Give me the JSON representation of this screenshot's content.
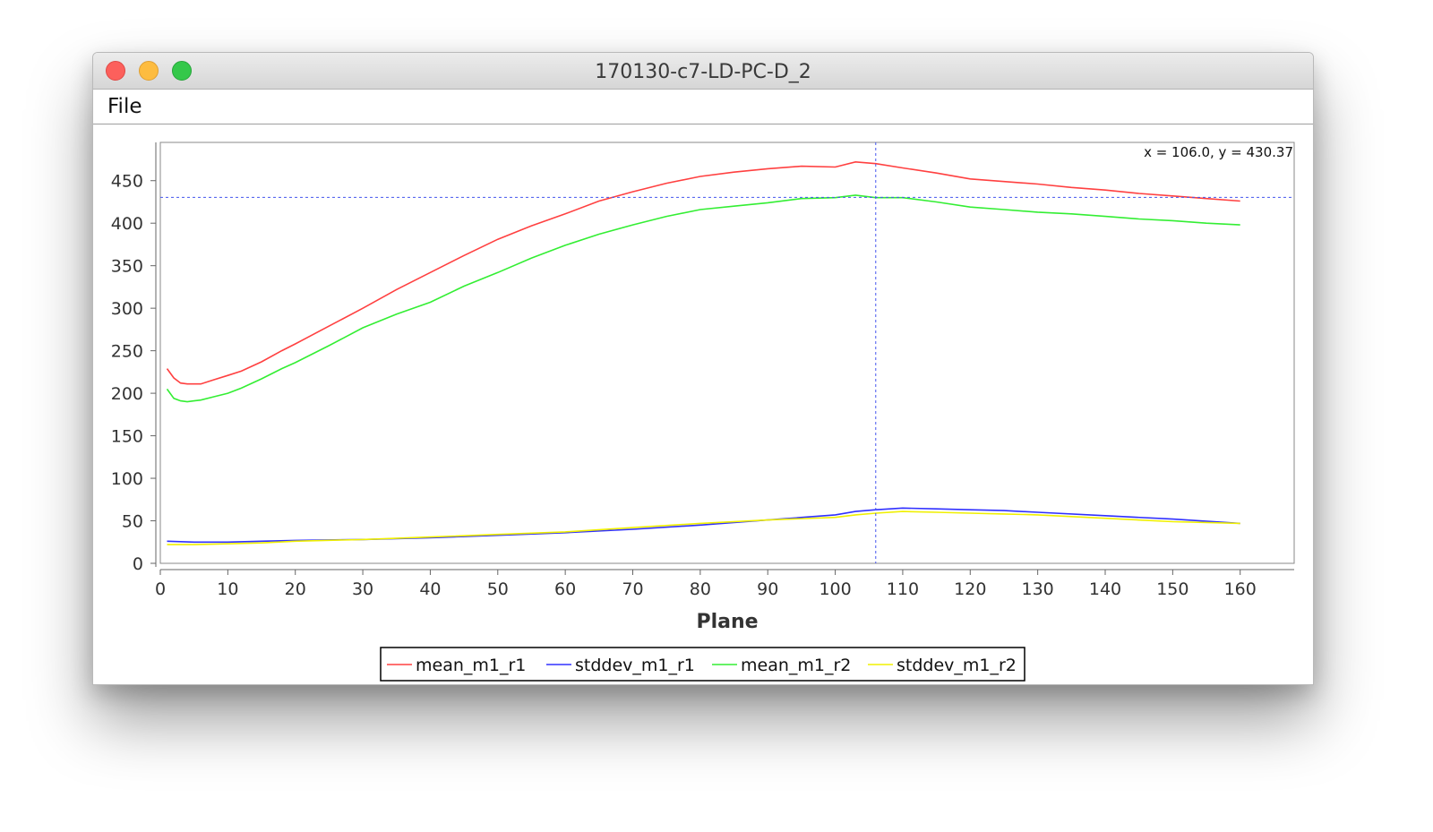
{
  "window": {
    "title": "170130-c7-LD-PC-D_2"
  },
  "menu": {
    "file_label": "File"
  },
  "crosshair": {
    "x": 106.0,
    "y": 430.37,
    "readout": "x = 106.0, y = 430.37"
  },
  "chart_data": {
    "type": "line",
    "title": "",
    "xlabel": "Plane",
    "ylabel": "",
    "xlim": [
      0,
      168
    ],
    "ylim": [
      0,
      495
    ],
    "xticks": [
      0,
      10,
      20,
      30,
      40,
      50,
      60,
      70,
      80,
      90,
      100,
      110,
      120,
      130,
      140,
      150,
      160
    ],
    "yticks": [
      0,
      50,
      100,
      150,
      200,
      250,
      300,
      350,
      400,
      450
    ],
    "grid": false,
    "legend_position": "bottom",
    "series": [
      {
        "name": "mean_m1_r1",
        "color": "#ff4040",
        "x": [
          1,
          2,
          3,
          4,
          5,
          6,
          8,
          10,
          12,
          15,
          18,
          20,
          25,
          30,
          35,
          40,
          45,
          50,
          55,
          60,
          65,
          70,
          75,
          80,
          85,
          90,
          95,
          100,
          103,
          106,
          110,
          115,
          120,
          125,
          130,
          135,
          140,
          145,
          150,
          155,
          160
        ],
        "y": [
          229,
          218,
          212,
          211,
          211,
          211,
          216,
          221,
          226,
          237,
          250,
          258,
          279,
          300,
          322,
          342,
          362,
          381,
          397,
          411,
          426,
          437,
          447,
          455,
          460,
          464,
          467,
          466,
          472,
          470,
          465,
          459,
          452,
          449,
          446,
          442,
          439,
          435,
          432,
          429,
          426
        ]
      },
      {
        "name": "stddev_m1_r1",
        "color": "#3030ff",
        "x": [
          1,
          5,
          10,
          15,
          20,
          30,
          40,
          50,
          60,
          70,
          80,
          90,
          100,
          103,
          106,
          110,
          115,
          120,
          125,
          130,
          140,
          150,
          160
        ],
        "y": [
          26,
          25,
          25,
          26,
          27,
          28,
          30,
          33,
          36,
          40,
          45,
          51,
          57,
          61,
          63,
          65,
          64,
          63,
          62,
          60,
          56,
          52,
          47
        ]
      },
      {
        "name": "mean_m1_r2",
        "color": "#33ee33",
        "x": [
          1,
          2,
          3,
          4,
          5,
          6,
          8,
          10,
          12,
          15,
          18,
          20,
          25,
          30,
          35,
          40,
          45,
          50,
          55,
          60,
          65,
          70,
          75,
          80,
          85,
          90,
          95,
          100,
          103,
          106,
          110,
          115,
          120,
          125,
          130,
          135,
          140,
          145,
          150,
          155,
          160
        ],
        "y": [
          205,
          194,
          191,
          190,
          191,
          192,
          196,
          200,
          206,
          217,
          229,
          236,
          256,
          277,
          293,
          307,
          326,
          342,
          359,
          374,
          387,
          398,
          408,
          416,
          420,
          424,
          429,
          430,
          433,
          430,
          430,
          425,
          419,
          416,
          413,
          411,
          408,
          405,
          403,
          400,
          398
        ]
      },
      {
        "name": "stddev_m1_r2",
        "color": "#f0f000",
        "x": [
          1,
          5,
          10,
          15,
          20,
          30,
          40,
          50,
          60,
          70,
          80,
          90,
          100,
          103,
          106,
          110,
          115,
          120,
          125,
          130,
          140,
          150,
          160
        ],
        "y": [
          22,
          22,
          23,
          24,
          26,
          28,
          31,
          34,
          37,
          42,
          47,
          51,
          54,
          57,
          59,
          61,
          60,
          59,
          58,
          57,
          53,
          49,
          47
        ]
      }
    ]
  }
}
